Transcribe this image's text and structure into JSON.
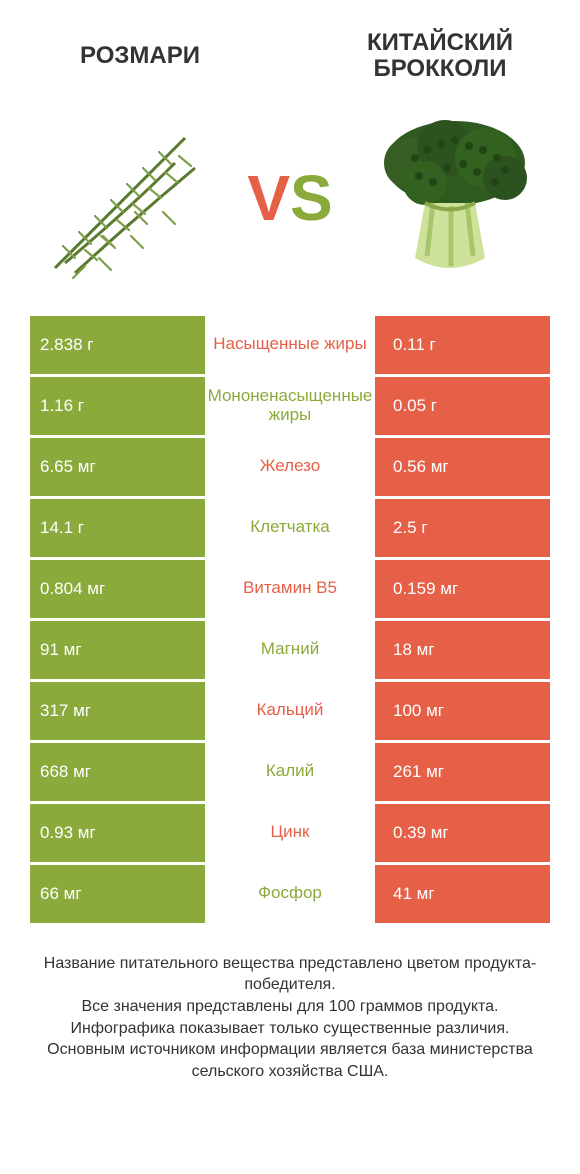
{
  "colors": {
    "green": "#8aaa3b",
    "orange": "#e65f47",
    "text": "#333333",
    "white": "#ffffff"
  },
  "header": {
    "left_title": "Розмари",
    "right_title": "Китайский брокколи",
    "vs_v": "V",
    "vs_s": "S"
  },
  "table": {
    "rows": [
      {
        "left": "2.838 г",
        "label": "Насыщенные жиры",
        "right": "0.11 г",
        "winner": "left"
      },
      {
        "left": "1.16 г",
        "label": "Мононенасыщенные жиры",
        "right": "0.05 г",
        "winner": "left"
      },
      {
        "left": "6.65 мг",
        "label": "Железо",
        "right": "0.56 мг",
        "winner": "left"
      },
      {
        "left": "14.1 г",
        "label": "Клетчатка",
        "right": "2.5 г",
        "winner": "left"
      },
      {
        "left": "0.804 мг",
        "label": "Витамин B5",
        "right": "0.159 мг",
        "winner": "left"
      },
      {
        "left": "91 мг",
        "label": "Магний",
        "right": "18 мг",
        "winner": "left"
      },
      {
        "left": "317 мг",
        "label": "Кальций",
        "right": "100 мг",
        "winner": "left"
      },
      {
        "left": "668 мг",
        "label": "Калий",
        "right": "261 мг",
        "winner": "left"
      },
      {
        "left": "0.93 мг",
        "label": "Цинк",
        "right": "0.39 мг",
        "winner": "left"
      },
      {
        "left": "66 мг",
        "label": "Фосфор",
        "right": "41 мг",
        "winner": "left"
      }
    ],
    "left_bg": "#8aaa3b",
    "right_bg": "#e65f47",
    "mid_bg": "#ffffff",
    "label_color_winner_left": "#e65f47",
    "label_color_winner_left_alt": "#8aaa3b"
  },
  "footer": {
    "line1": "Название питательного вещества представлено цветом продукта-победителя.",
    "line2": "Все значения представлены для 100 граммов продукта.",
    "line3": "Инфографика показывает только существенные различия.",
    "line4": "Основным источником информации является база министерства сельского хозяйства США."
  }
}
